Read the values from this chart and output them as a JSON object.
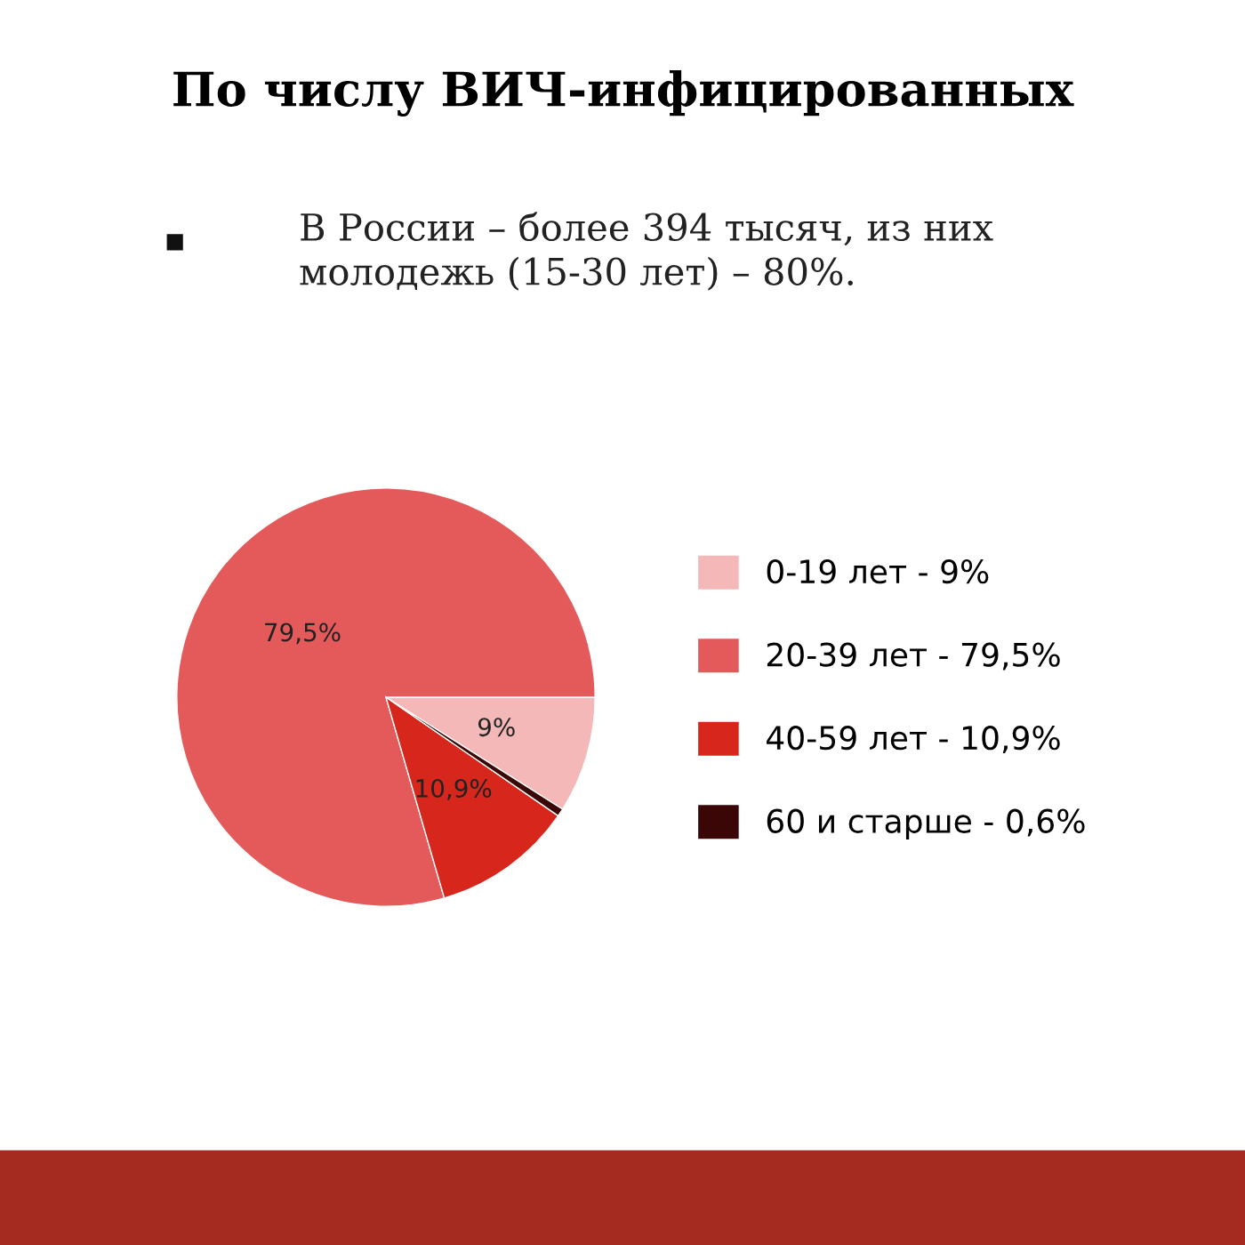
{
  "chart_data": {
    "type": "pie",
    "title": "По числу ВИЧ-инфицированных",
    "subtitle": "В России – более 394 тысяч, из них\nмолодежь (15-30 лет) – 80%.",
    "categories": [
      "0-19 лет - 9%",
      "20-39 лет - 79,5%",
      "40-59 лет - 10,9%",
      "60 и старше - 0,6%"
    ],
    "values": [
      9,
      79.5,
      10.9,
      0.6
    ],
    "colors": [
      "#f5b8b8",
      "#e45a5a",
      "#d7261c",
      "#3a0606"
    ],
    "value_labels": [
      "9%",
      "79,5%",
      "10,9%",
      null
    ],
    "legend": "right"
  }
}
